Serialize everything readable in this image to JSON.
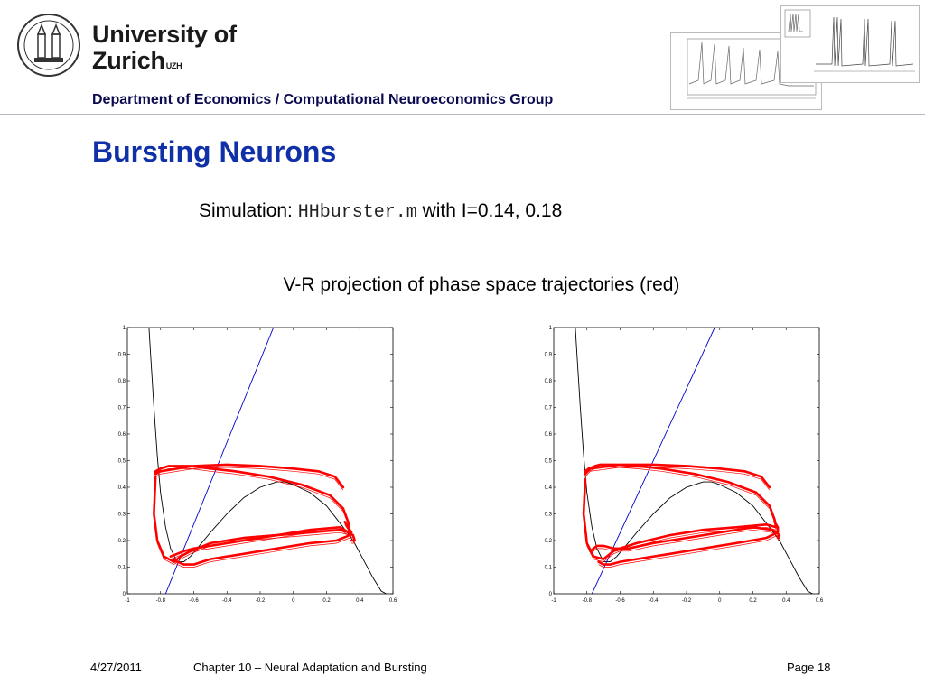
{
  "header": {
    "university_line1": "University of",
    "university_line2": "Zurich",
    "university_suffix": "UZH",
    "department": "Department of Economics / Computational Neuroeconomics Group"
  },
  "slide": {
    "title": "Bursting Neurons",
    "simulation_prefix": "Simulation: ",
    "simulation_code": "HHburster.m",
    "simulation_suffix": " with I=0.14, 0.18",
    "caption": "V-R projection of phase space trajectories (red)"
  },
  "footer": {
    "date": "4/27/2011",
    "chapter": "Chapter 10 – Neural Adaptation and Bursting",
    "page": "Page 18"
  },
  "colors": {
    "title": "#1030a8",
    "department": "#0a0a50",
    "trajectory": "#ff0000",
    "linear_nullcline": "#0000cc",
    "cubic_nullcline": "#000000"
  },
  "chart_data": [
    {
      "type": "line",
      "title": "",
      "xlabel": "",
      "ylabel": "",
      "xlim": [
        -1,
        0.6
      ],
      "ylim": [
        0,
        1
      ],
      "xticks": [
        "-1",
        "-0.8",
        "-0.6",
        "-0.4",
        "-0.2",
        "0",
        "0.2",
        "0.4",
        "0.6"
      ],
      "yticks": [
        "0",
        "0.1",
        "0.2",
        "0.3",
        "0.4",
        "0.5",
        "0.6",
        "0.7",
        "0.8",
        "0.9",
        "1"
      ],
      "grid": false,
      "series": [
        {
          "color": "#000000",
          "x": [
            -0.87,
            -0.86,
            -0.84,
            -0.82,
            -0.8,
            -0.77,
            -0.74,
            -0.7,
            -0.66,
            -0.62,
            -0.58,
            -0.5,
            -0.4,
            -0.3,
            -0.2,
            -0.1,
            -0.05,
            0.0,
            0.1,
            0.2,
            0.3,
            0.36,
            0.42,
            0.48,
            0.53,
            0.56
          ],
          "y": [
            1.0,
            0.9,
            0.7,
            0.52,
            0.38,
            0.25,
            0.17,
            0.12,
            0.12,
            0.14,
            0.17,
            0.23,
            0.3,
            0.36,
            0.4,
            0.42,
            0.42,
            0.41,
            0.38,
            0.33,
            0.25,
            0.2,
            0.13,
            0.06,
            0.01,
            0.0
          ]
        },
        {
          "color": "#0000cc",
          "x": [
            -0.77,
            -0.12
          ],
          "y": [
            0.0,
            1.0
          ]
        },
        {
          "color": "#ff0000",
          "x": [
            -0.83,
            -0.84,
            -0.82,
            -0.78,
            -0.72,
            -0.68,
            -0.62,
            -0.5,
            -0.3,
            -0.1,
            0.1,
            0.28,
            0.34,
            0.33,
            0.3,
            0.22,
            0.05,
            -0.15,
            -0.35,
            -0.5,
            -0.62,
            -0.68,
            -0.72,
            -0.75,
            -0.8,
            -0.83,
            -0.83,
            -0.8,
            -0.6,
            -0.4,
            -0.2,
            0.0,
            0.15,
            0.25,
            0.3
          ],
          "y": [
            0.44,
            0.3,
            0.2,
            0.14,
            0.12,
            0.14,
            0.16,
            0.19,
            0.21,
            0.22,
            0.23,
            0.24,
            0.23,
            0.27,
            0.32,
            0.37,
            0.41,
            0.44,
            0.46,
            0.47,
            0.48,
            0.48,
            0.48,
            0.48,
            0.47,
            0.46,
            0.45,
            0.46,
            0.48,
            0.485,
            0.48,
            0.47,
            0.46,
            0.44,
            0.4
          ]
        },
        {
          "color": "#ff0000",
          "x": [
            -0.72,
            -0.7,
            -0.66,
            -0.6,
            -0.5,
            -0.3,
            -0.1,
            0.1,
            0.26,
            0.34,
            0.35,
            0.33,
            0.31
          ],
          "y": [
            0.13,
            0.12,
            0.11,
            0.11,
            0.13,
            0.15,
            0.17,
            0.19,
            0.2,
            0.22,
            0.23,
            0.25,
            0.27
          ]
        },
        {
          "color": "#ff0000",
          "x": [
            -0.74,
            -0.7,
            -0.66,
            -0.6,
            -0.5,
            -0.3,
            -0.1,
            0.1,
            0.28,
            0.36,
            0.37,
            0.35
          ],
          "y": [
            0.14,
            0.15,
            0.16,
            0.17,
            0.18,
            0.2,
            0.22,
            0.24,
            0.25,
            0.22,
            0.2,
            0.2
          ]
        }
      ]
    },
    {
      "type": "line",
      "title": "",
      "xlabel": "",
      "ylabel": "",
      "xlim": [
        -1,
        0.6
      ],
      "ylim": [
        0,
        1
      ],
      "xticks": [
        "-1",
        "-0.8",
        "-0.6",
        "-0.4",
        "-0.2",
        "0",
        "0.2",
        "0.4",
        "0.6"
      ],
      "yticks": [
        "0",
        "0.1",
        "0.2",
        "0.3",
        "0.4",
        "0.5",
        "0.6",
        "0.7",
        "0.8",
        "0.9",
        "1"
      ],
      "grid": false,
      "series": [
        {
          "color": "#000000",
          "x": [
            -0.87,
            -0.86,
            -0.84,
            -0.82,
            -0.8,
            -0.77,
            -0.74,
            -0.7,
            -0.66,
            -0.62,
            -0.58,
            -0.5,
            -0.4,
            -0.3,
            -0.2,
            -0.1,
            -0.05,
            0.0,
            0.1,
            0.2,
            0.3,
            0.36,
            0.42,
            0.48,
            0.53,
            0.56
          ],
          "y": [
            1.0,
            0.9,
            0.7,
            0.52,
            0.38,
            0.25,
            0.17,
            0.12,
            0.12,
            0.14,
            0.17,
            0.23,
            0.3,
            0.36,
            0.4,
            0.42,
            0.42,
            0.41,
            0.38,
            0.33,
            0.25,
            0.2,
            0.13,
            0.06,
            0.01,
            0.0
          ]
        },
        {
          "color": "#0000cc",
          "x": [
            -0.77,
            -0.03
          ],
          "y": [
            0.0,
            1.0
          ]
        },
        {
          "color": "#ff0000",
          "x": [
            -0.81,
            -0.82,
            -0.8,
            -0.76,
            -0.7,
            -0.64,
            -0.6,
            -0.5,
            -0.3,
            -0.1,
            0.1,
            0.28,
            0.34,
            0.33,
            0.3,
            0.22,
            0.05,
            -0.15,
            -0.35,
            -0.5,
            -0.62,
            -0.68,
            -0.72,
            -0.75,
            -0.79,
            -0.81,
            -0.81,
            -0.78,
            -0.6,
            -0.4,
            -0.2,
            0.0,
            0.15,
            0.25,
            0.3
          ],
          "y": [
            0.43,
            0.3,
            0.19,
            0.14,
            0.13,
            0.16,
            0.17,
            0.19,
            0.22,
            0.24,
            0.25,
            0.26,
            0.25,
            0.28,
            0.33,
            0.38,
            0.42,
            0.45,
            0.47,
            0.48,
            0.485,
            0.485,
            0.485,
            0.48,
            0.47,
            0.46,
            0.45,
            0.47,
            0.485,
            0.485,
            0.48,
            0.47,
            0.46,
            0.44,
            0.4
          ]
        },
        {
          "color": "#ff0000",
          "x": [
            -0.78,
            -0.74,
            -0.7,
            -0.64,
            -0.55,
            -0.4,
            -0.2,
            0.0,
            0.2,
            0.32,
            0.36,
            0.35
          ],
          "y": [
            0.16,
            0.18,
            0.18,
            0.17,
            0.17,
            0.19,
            0.21,
            0.23,
            0.25,
            0.24,
            0.22,
            0.21
          ]
        },
        {
          "color": "#ff0000",
          "x": [
            -0.73,
            -0.7,
            -0.66,
            -0.6,
            -0.5,
            -0.3,
            -0.1,
            0.1,
            0.28,
            0.35,
            0.35,
            0.33
          ],
          "y": [
            0.12,
            0.11,
            0.11,
            0.12,
            0.13,
            0.15,
            0.17,
            0.19,
            0.21,
            0.23,
            0.25,
            0.27
          ]
        }
      ]
    }
  ]
}
